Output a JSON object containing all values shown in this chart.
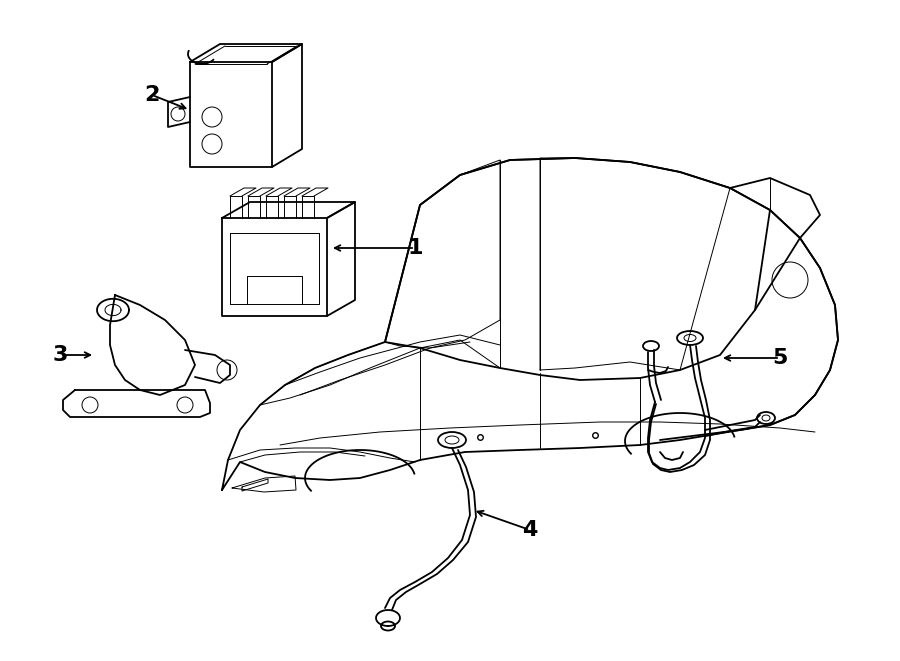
{
  "background_color": "#ffffff",
  "line_color": "#000000",
  "figsize": [
    9.0,
    6.61
  ],
  "dpi": 100,
  "lw_main": 1.3,
  "lw_thin": 0.7,
  "lw_detail": 0.9
}
